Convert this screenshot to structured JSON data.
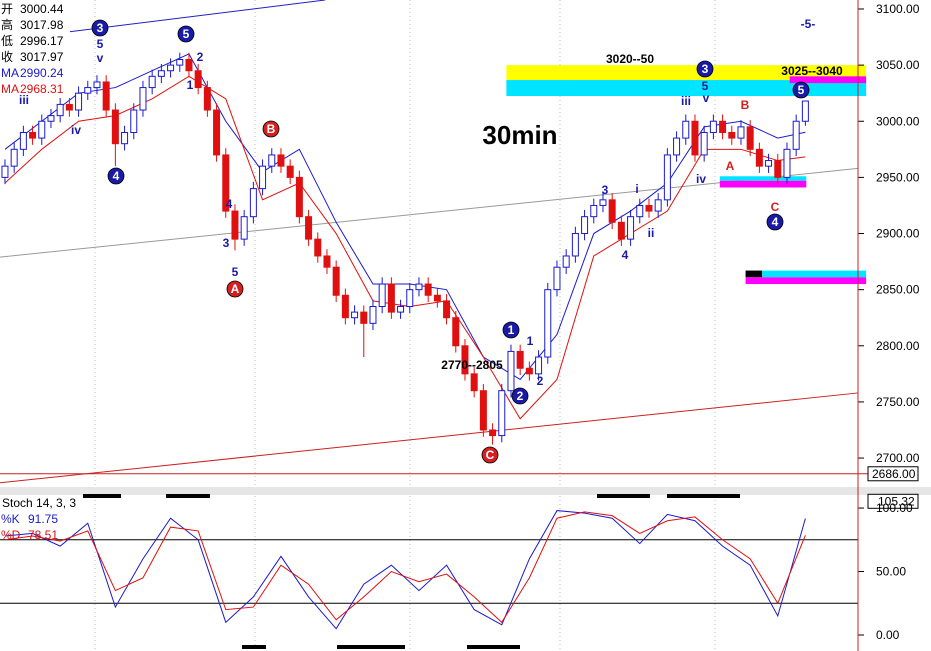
{
  "chart_data": [
    {
      "type": "candlestick",
      "title": "30min",
      "info": [
        {
          "label": "开",
          "value": 3000.44,
          "color": "#000000"
        },
        {
          "label": "高",
          "value": 3017.98,
          "color": "#000000"
        },
        {
          "label": "低",
          "value": 2996.17,
          "color": "#000000"
        },
        {
          "label": "收",
          "value": 3017.97,
          "color": "#000000"
        },
        {
          "label": "MA",
          "value": 2990.24,
          "color": "#1a1ad0"
        },
        {
          "label": "MA",
          "value": 2968.31,
          "color": "#e01010"
        }
      ],
      "up_color": "#1a1ad0",
      "down_color": "#e01010",
      "open": [
        2950,
        2960,
        2975,
        2990,
        2985,
        3000,
        3005,
        3015,
        3010,
        3025,
        3030,
        3035,
        3010,
        2980,
        2990,
        3010,
        3030,
        3040,
        3045,
        3050,
        3055,
        3045,
        3030,
        3010,
        2970,
        2920,
        2895,
        2915,
        2940,
        2960,
        2970,
        2960,
        2950,
        2915,
        2895,
        2880,
        2870,
        2845,
        2825,
        2830,
        2820,
        2835,
        2855,
        2830,
        2835,
        2850,
        2855,
        2845,
        2840,
        2825,
        2800,
        2775,
        2760,
        2725,
        2720,
        2760,
        2795,
        2780,
        2775,
        2790,
        2850,
        2870,
        2880,
        2900,
        2915,
        2925,
        2930,
        2910,
        2895,
        2915,
        2925,
        2920,
        2930,
        2970,
        2985,
        3000,
        2970,
        2990,
        3000,
        2990,
        2985,
        2995,
        2975,
        2960,
        2965,
        2950,
        2975,
        3000
      ],
      "high": [
        2966,
        2981,
        2996,
        2996,
        3006,
        3011,
        3021,
        3021,
        3031,
        3036,
        3041,
        3041,
        3016,
        2996,
        3016,
        3036,
        3046,
        3051,
        3056,
        3061,
        3061,
        3051,
        3036,
        3016,
        2976,
        2926,
        2921,
        2946,
        2966,
        2976,
        2976,
        2966,
        2956,
        2921,
        2901,
        2886,
        2876,
        2851,
        2836,
        2836,
        2841,
        2861,
        2861,
        2841,
        2856,
        2861,
        2861,
        2851,
        2846,
        2831,
        2806,
        2781,
        2766,
        2731,
        2766,
        2801,
        2801,
        2786,
        2796,
        2856,
        2876,
        2886,
        2906,
        2921,
        2931,
        2936,
        2936,
        2916,
        2921,
        2931,
        2931,
        2936,
        2976,
        2991,
        3006,
        3006,
        2996,
        3006,
        3006,
        2996,
        3001,
        3001,
        2981,
        2971,
        2971,
        2981,
        3006,
        3018
      ],
      "low": [
        2944,
        2954,
        2969,
        2979,
        2979,
        2994,
        2999,
        3004,
        3004,
        3019,
        3024,
        3004,
        2960,
        2974,
        2984,
        3004,
        3024,
        3034,
        3039,
        3044,
        3039,
        3024,
        3004,
        2964,
        2914,
        2885,
        2889,
        2909,
        2934,
        2954,
        2954,
        2944,
        2909,
        2889,
        2874,
        2864,
        2839,
        2819,
        2819,
        2790,
        2814,
        2829,
        2824,
        2824,
        2829,
        2844,
        2839,
        2834,
        2819,
        2794,
        2769,
        2754,
        2719,
        2712,
        2714,
        2754,
        2774,
        2769,
        2769,
        2784,
        2844,
        2864,
        2874,
        2894,
        2909,
        2919,
        2904,
        2889,
        2889,
        2909,
        2914,
        2914,
        2924,
        2964,
        2979,
        2964,
        2964,
        2984,
        2984,
        2979,
        2979,
        2969,
        2954,
        2954,
        2944,
        2944,
        2969,
        2996
      ],
      "close": [
        2960,
        2975,
        2990,
        2985,
        3000,
        3005,
        3015,
        3010,
        3025,
        3030,
        3035,
        3010,
        2980,
        2990,
        3010,
        3030,
        3040,
        3045,
        3050,
        3055,
        3045,
        3030,
        3010,
        2970,
        2920,
        2895,
        2915,
        2940,
        2960,
        2970,
        2960,
        2950,
        2915,
        2895,
        2880,
        2870,
        2845,
        2825,
        2830,
        2820,
        2835,
        2855,
        2830,
        2835,
        2850,
        2855,
        2845,
        2840,
        2825,
        2800,
        2775,
        2760,
        2725,
        2720,
        2760,
        2795,
        2780,
        2775,
        2790,
        2850,
        2870,
        2880,
        2900,
        2915,
        2925,
        2930,
        2910,
        2895,
        2915,
        2925,
        2920,
        2930,
        2970,
        2985,
        3000,
        2970,
        2990,
        3000,
        2990,
        2985,
        2995,
        2975,
        2960,
        2965,
        2950,
        2975,
        3000,
        3018
      ],
      "series": [
        {
          "color": "#1a1ad0",
          "x": [
            0,
            4,
            8,
            12,
            16,
            20,
            24,
            28,
            32,
            36,
            40,
            44,
            48,
            52,
            56,
            60,
            64,
            68,
            72,
            76,
            80,
            84,
            87
          ],
          "values": [
            2975,
            3000,
            3025,
            3030,
            3045,
            3060,
            3000,
            2955,
            2975,
            2910,
            2855,
            2855,
            2850,
            2790,
            2770,
            2810,
            2900,
            2920,
            2945,
            2995,
            3000,
            2985,
            2990.24
          ]
        },
        {
          "color": "#e01010",
          "x": [
            0,
            4,
            8,
            12,
            16,
            20,
            24,
            28,
            32,
            36,
            40,
            44,
            48,
            52,
            56,
            60,
            64,
            68,
            72,
            76,
            80,
            84,
            87
          ],
          "values": [
            2945,
            2975,
            3000,
            3005,
            3020,
            3040,
            3020,
            2930,
            2945,
            2900,
            2840,
            2835,
            2840,
            2790,
            2735,
            2770,
            2880,
            2900,
            2920,
            2975,
            2975,
            2965,
            2968.31
          ]
        }
      ],
      "trendlines": [
        {
          "color": "#999999",
          "x": [
            -0.54,
            92.72
          ],
          "values": [
            2879,
            2958
          ]
        },
        {
          "color": "#cc2020",
          "x": [
            -0.54,
            92.72
          ],
          "values": [
            2678,
            2758
          ]
        },
        {
          "color": "#2020c0",
          "x": [
            -0.54,
            34.8
          ],
          "values": [
            3072,
            3108
          ]
        }
      ],
      "zones": [
        {
          "color": "#ffff00",
          "x": [
            54.5,
            93.6
          ],
          "range": [
            3036.7,
            3050
          ]
        },
        {
          "color": "#00e5ff",
          "x": [
            54.5,
            93.6
          ],
          "range": [
            3022.5,
            3036.7
          ]
        },
        {
          "color": "#ff00ff",
          "x": [
            85.3,
            93.6
          ],
          "range": [
            3034,
            3040
          ]
        },
        {
          "color": "#00e5ff",
          "x": [
            77.7,
            87.1
          ],
          "range": [
            2947,
            2951
          ]
        },
        {
          "color": "#ff00ff",
          "x": [
            77.7,
            87.1
          ],
          "range": [
            2941,
            2947
          ]
        },
        {
          "color": "#000000",
          "x": [
            80.5,
            82.3
          ],
          "range": [
            2861,
            2867
          ]
        },
        {
          "color": "#00e5ff",
          "x": [
            82.3,
            93.6
          ],
          "range": [
            2861,
            2867
          ]
        },
        {
          "color": "#ff00ff",
          "x": [
            80.5,
            93.6
          ],
          "range": [
            2855,
            2861
          ]
        }
      ],
      "annotations": [
        {
          "text": "3",
          "color": "#1a1aa8",
          "circle": true
        },
        {
          "text": "5",
          "color": "#1a1aa8",
          "circle": false
        },
        {
          "text": "v",
          "color": "#1a1aa8",
          "circle": false
        },
        {
          "text": "iii",
          "color": "#1a1aa8",
          "circle": false
        },
        {
          "text": "iv",
          "color": "#1a1aa8",
          "circle": false
        },
        {
          "text": "4",
          "color": "#1a1aa8",
          "circle": true
        },
        {
          "text": "5",
          "color": "#1a1aa8",
          "circle": true
        },
        {
          "text": "2",
          "color": "#1a1aa8",
          "circle": false
        },
        {
          "text": "1",
          "color": "#1a1aa8",
          "circle": false
        },
        {
          "text": "4",
          "color": "#1a1aa8",
          "circle": false
        },
        {
          "text": "3",
          "color": "#1a1aa8",
          "circle": false
        },
        {
          "text": "5",
          "color": "#1a1aa8",
          "circle": false
        },
        {
          "text": "A",
          "color": "#d42020",
          "circle": true
        },
        {
          "text": "B",
          "color": "#d42020",
          "circle": true
        },
        {
          "text": "1",
          "color": "#1a1aa8",
          "circle": true
        },
        {
          "text": "1",
          "color": "#1a1aa8",
          "circle": false
        },
        {
          "text": "2770--2805",
          "color": "#000000",
          "circle": false
        },
        {
          "text": "2",
          "color": "#1a1aa8",
          "circle": true
        },
        {
          "text": "2",
          "color": "#1a1aa8",
          "circle": false
        },
        {
          "text": "C",
          "color": "#d42020",
          "circle": true
        },
        {
          "text": "3",
          "color": "#1a1aa8",
          "circle": false
        },
        {
          "text": "i",
          "color": "#1a1aa8",
          "circle": false
        },
        {
          "text": "4",
          "color": "#1a1aa8",
          "circle": false
        },
        {
          "text": "ii",
          "color": "#1a1aa8",
          "circle": false
        },
        {
          "text": "3",
          "color": "#1a1aa8",
          "circle": true
        },
        {
          "text": "5",
          "color": "#1a1aa8",
          "circle": false
        },
        {
          "text": "iii",
          "color": "#1a1aa8",
          "circle": false
        },
        {
          "text": "v",
          "color": "#1a1aa8",
          "circle": false
        },
        {
          "text": "iv",
          "color": "#1a1aa8",
          "circle": false
        },
        {
          "text": "B",
          "color": "#d42020",
          "circle": false
        },
        {
          "text": "A",
          "color": "#d42020",
          "circle": false
        },
        {
          "text": "C",
          "color": "#d42020",
          "circle": false
        },
        {
          "text": "4",
          "color": "#1a1aa8",
          "circle": true
        },
        {
          "text": "5",
          "color": "#1a1aa8",
          "circle": true
        },
        {
          "text": "-5-",
          "color": "#1a1aa8",
          "circle": false
        },
        {
          "text": "3020--50",
          "color": "#000000",
          "circle": false
        },
        {
          "text": "3025--3040",
          "color": "#000000",
          "circle": false
        }
      ],
      "xlim": [
        -0.54,
        92.72
      ],
      "ylim": [
        2676,
        3108
      ],
      "yticks": [
        {
          "value": 3100,
          "label": "3100.00"
        },
        {
          "value": 3050,
          "label": "3050.00"
        },
        {
          "value": 3000,
          "label": "3000.00"
        },
        {
          "value": 2950,
          "label": "2950.00"
        },
        {
          "value": 2900,
          "label": "2900.00"
        },
        {
          "value": 2850,
          "label": "2850.00"
        },
        {
          "value": 2800,
          "label": "2800.00"
        },
        {
          "value": 2750,
          "label": "2750.00"
        },
        {
          "value": 2700,
          "label": "2700.00"
        }
      ],
      "cursor": {
        "value": 2686,
        "label": "2686.00"
      }
    },
    {
      "type": "line",
      "title": "Stoch 14, 3, 3",
      "series": [
        {
          "name": "%K",
          "last": 91.75,
          "color": "#1a1ad0",
          "x": [
            0,
            3,
            6,
            9,
            12,
            15,
            18,
            21,
            24,
            27,
            30,
            33,
            36,
            39,
            42,
            45,
            48,
            51,
            54,
            57,
            60,
            63,
            66,
            69,
            72,
            75,
            78,
            81,
            84,
            87
          ],
          "values": [
            78,
            80,
            70,
            88,
            22,
            60,
            92,
            75,
            10,
            30,
            62,
            30,
            5,
            40,
            55,
            35,
            55,
            20,
            8,
            60,
            98,
            96,
            92,
            72,
            95,
            90,
            70,
            55,
            15,
            91.75
          ]
        },
        {
          "name": "%D",
          "last": 78.51,
          "color": "#e01010",
          "x": [
            0,
            3,
            6,
            9,
            12,
            15,
            18,
            21,
            24,
            27,
            30,
            33,
            36,
            39,
            42,
            45,
            48,
            51,
            54,
            57,
            60,
            63,
            66,
            69,
            72,
            75,
            78,
            81,
            84,
            87
          ],
          "values": [
            75,
            78,
            74,
            82,
            35,
            45,
            85,
            82,
            20,
            22,
            55,
            40,
            12,
            30,
            50,
            42,
            48,
            30,
            10,
            45,
            92,
            97,
            94,
            80,
            90,
            93,
            75,
            60,
            25,
            78.51
          ]
        }
      ],
      "levels": [
        75,
        25
      ],
      "xlim": [
        -0.54,
        92.72
      ],
      "ylim": [
        -12.6,
        108.7
      ],
      "yticks": [
        {
          "value": 100,
          "label": "100.00"
        },
        {
          "value": 50,
          "label": "50.00"
        },
        {
          "value": 0,
          "label": "0.00"
        }
      ],
      "last": {
        "value": 105.32,
        "label": "105.32"
      }
    }
  ]
}
